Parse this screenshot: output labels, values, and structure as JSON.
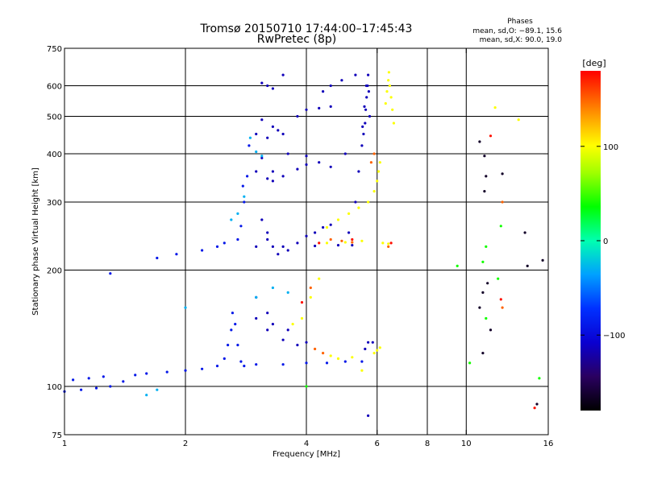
{
  "chart_data": {
    "type": "scatter",
    "title": "Tromsø 20150710 17:44:00–17:45:43",
    "subtitle": "RwPretec (8p)",
    "phases": {
      "title": "Phases",
      "line_o": "mean, sd,O: −89.1, 15.6",
      "line_x": "mean, sd,X:  90.0, 19.0"
    },
    "xlabel": "Frequency [MHz]",
    "ylabel": "Stationary phase Virtual Height [km]",
    "xscale": "log",
    "yscale": "log",
    "xlim": [
      1,
      16
    ],
    "ylim": [
      75,
      750
    ],
    "xticks": [
      1,
      2,
      4,
      6,
      8,
      10,
      16
    ],
    "yticks": [
      75,
      100,
      200,
      300,
      400,
      500,
      600,
      750
    ],
    "x_gridlines": [
      2,
      4,
      6,
      8,
      10
    ],
    "y_gridlines": [
      100,
      200,
      300,
      400,
      500,
      600
    ],
    "grid": true,
    "colorbar": {
      "label": "[deg]",
      "ticks": [
        100,
        0,
        -100
      ],
      "range": [
        -180,
        180
      ]
    },
    "series": [
      {
        "phase": -90,
        "points": [
          [
            1,
            97
          ],
          [
            1.1,
            98
          ],
          [
            1.2,
            99
          ],
          [
            1.3,
            100
          ],
          [
            1.4,
            103
          ],
          [
            1.5,
            107
          ],
          [
            1.6,
            108
          ],
          [
            1.8,
            109
          ],
          [
            2,
            110
          ],
          [
            2.2,
            111
          ],
          [
            2.4,
            113
          ],
          [
            2.5,
            118
          ],
          [
            2.55,
            128
          ],
          [
            2.6,
            140
          ],
          [
            2.62,
            155
          ],
          [
            2.66,
            145
          ],
          [
            2.7,
            128
          ],
          [
            2.75,
            116
          ],
          [
            2.8,
            113
          ],
          [
            3,
            114
          ],
          [
            3.5,
            114
          ],
          [
            4,
            115
          ],
          [
            4.5,
            115
          ],
          [
            5,
            116
          ],
          [
            5.5,
            116
          ],
          [
            1.05,
            104
          ],
          [
            1.15,
            105
          ],
          [
            1.25,
            106
          ],
          [
            1.3,
            196
          ],
          [
            1.7,
            215
          ],
          [
            1.9,
            220
          ],
          [
            2.2,
            225
          ],
          [
            2.4,
            230
          ],
          [
            2.5,
            235
          ],
          [
            2.7,
            240
          ],
          [
            2.75,
            260
          ],
          [
            2.8,
            300
          ],
          [
            2.85,
            350
          ],
          [
            2.88,
            420
          ],
          [
            2.78,
            330
          ]
        ]
      },
      {
        "phase": -115,
        "points": [
          [
            3,
            150
          ],
          [
            3.2,
            140
          ],
          [
            3.5,
            132
          ],
          [
            3.8,
            128
          ],
          [
            3,
            170
          ],
          [
            3.2,
            155
          ],
          [
            3.3,
            145
          ],
          [
            3.6,
            140
          ],
          [
            4,
            130
          ],
          [
            5.6,
            125
          ],
          [
            5.7,
            130
          ],
          [
            3.1,
            270
          ],
          [
            3.2,
            250
          ],
          [
            3.3,
            230
          ],
          [
            3.4,
            220
          ],
          [
            3.6,
            225
          ],
          [
            3.8,
            235
          ],
          [
            4,
            245
          ],
          [
            4.2,
            250
          ],
          [
            4.4,
            258
          ],
          [
            4.6,
            262
          ],
          [
            3,
            230
          ],
          [
            3.2,
            240
          ],
          [
            3.5,
            230
          ],
          [
            4.2,
            231
          ],
          [
            4.8,
            232
          ],
          [
            5.2,
            232
          ],
          [
            3.1,
            390
          ],
          [
            3.3,
            360
          ],
          [
            3.5,
            350
          ],
          [
            3.8,
            365
          ],
          [
            4,
            375
          ],
          [
            4.3,
            380
          ],
          [
            3,
            360
          ],
          [
            3.2,
            345
          ],
          [
            3.3,
            340
          ],
          [
            3.6,
            400
          ],
          [
            4,
            395
          ],
          [
            3.1,
            490
          ],
          [
            3.3,
            470
          ],
          [
            3.5,
            450
          ],
          [
            3.8,
            500
          ],
          [
            4,
            520
          ],
          [
            4.3,
            525
          ],
          [
            4.6,
            530
          ],
          [
            3,
            450
          ],
          [
            3.2,
            440
          ],
          [
            3.4,
            460
          ],
          [
            3.1,
            610
          ],
          [
            3.2,
            600
          ],
          [
            3.5,
            640
          ],
          [
            3.3,
            590
          ],
          [
            4.4,
            580
          ],
          [
            4.6,
            600
          ],
          [
            4.9,
            620
          ],
          [
            5.3,
            640
          ],
          [
            5.5,
            420
          ],
          [
            5.55,
            450
          ],
          [
            5.6,
            480
          ],
          [
            5.62,
            520
          ],
          [
            5.65,
            560
          ],
          [
            5.68,
            600
          ],
          [
            5.7,
            640
          ],
          [
            5.52,
            470
          ],
          [
            5.58,
            530
          ],
          [
            5.64,
            600
          ],
          [
            5.72,
            580
          ],
          [
            5.75,
            500
          ],
          [
            5.1,
            250
          ],
          [
            5.3,
            300
          ],
          [
            5.4,
            360
          ],
          [
            5,
            400
          ],
          [
            4.6,
            370
          ],
          [
            5.7,
            84
          ],
          [
            5.85,
            130
          ]
        ]
      },
      {
        "phase": 100,
        "points": [
          [
            4.5,
            258
          ],
          [
            4.8,
            270
          ],
          [
            5.1,
            280
          ],
          [
            5.4,
            290
          ],
          [
            5.7,
            300
          ],
          [
            5.9,
            320
          ],
          [
            6,
            340
          ],
          [
            6.05,
            360
          ],
          [
            6.1,
            380
          ],
          [
            6.3,
            540
          ],
          [
            6.35,
            580
          ],
          [
            6.4,
            620
          ],
          [
            6.42,
            650
          ],
          [
            6.45,
            600
          ],
          [
            6.5,
            560
          ],
          [
            6.55,
            520
          ],
          [
            6.6,
            480
          ],
          [
            4.6,
            120
          ],
          [
            4.8,
            118
          ],
          [
            5.2,
            119
          ],
          [
            5.9,
            122
          ],
          [
            6,
            124
          ],
          [
            6.1,
            126
          ],
          [
            4.5,
            235
          ],
          [
            5,
            236
          ],
          [
            5.5,
            238
          ],
          [
            6.2,
            235
          ],
          [
            6.4,
            234
          ],
          [
            3.7,
            145
          ],
          [
            3.9,
            150
          ],
          [
            4.1,
            170
          ],
          [
            4.3,
            190
          ],
          [
            5.5,
            110
          ],
          [
            11.8,
            527
          ],
          [
            13.5,
            490
          ]
        ]
      },
      {
        "phase": 150,
        "points": [
          [
            4.6,
            240
          ],
          [
            4.9,
            238
          ],
          [
            5.2,
            236
          ],
          [
            4.1,
            180
          ],
          [
            6.4,
            230
          ],
          [
            5.8,
            380
          ],
          [
            5.9,
            400
          ],
          [
            4.2,
            125
          ],
          [
            4.4,
            122
          ],
          [
            12.3,
            160
          ],
          [
            12.3,
            300
          ]
        ]
      },
      {
        "phase": -30,
        "points": [
          [
            3,
            170
          ],
          [
            3.3,
            180
          ],
          [
            3.6,
            175
          ],
          [
            2.6,
            270
          ],
          [
            2.7,
            280
          ],
          [
            2.8,
            310
          ],
          [
            2.9,
            440
          ],
          [
            3,
            405
          ],
          [
            3.1,
            395
          ],
          [
            1.6,
            95
          ],
          [
            1.7,
            98
          ],
          [
            2,
            160
          ]
        ]
      },
      {
        "phase": -165,
        "points": [
          [
            10.8,
            430
          ],
          [
            11.1,
            395
          ],
          [
            11.2,
            350
          ],
          [
            11.1,
            320
          ],
          [
            12.3,
            355
          ],
          [
            14,
            250
          ],
          [
            14.2,
            205
          ],
          [
            10.8,
            160
          ],
          [
            11,
            175
          ],
          [
            11.3,
            185
          ],
          [
            11.5,
            140
          ],
          [
            11,
            122
          ],
          [
            15.5,
            212
          ],
          [
            15,
            90
          ]
        ]
      },
      {
        "phase": 40,
        "points": [
          [
            11,
            210
          ],
          [
            11.2,
            230
          ],
          [
            12,
            190
          ],
          [
            12.2,
            260
          ],
          [
            15.2,
            105
          ],
          [
            4,
            100
          ],
          [
            11.2,
            150
          ],
          [
            10.2,
            115
          ],
          [
            9.5,
            205
          ]
        ]
      },
      {
        "phase": 175,
        "points": [
          [
            4.3,
            235
          ],
          [
            5.2,
            240
          ],
          [
            11.5,
            445
          ],
          [
            12.2,
            168
          ],
          [
            14.8,
            88
          ],
          [
            6.5,
            235
          ],
          [
            3.9,
            165
          ]
        ]
      }
    ]
  }
}
